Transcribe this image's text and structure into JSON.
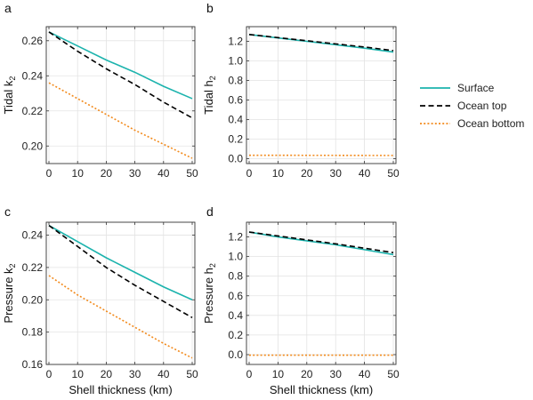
{
  "legend": {
    "entries": [
      {
        "name": "Surface",
        "color": "#1cb3ad",
        "dash": "solid"
      },
      {
        "name": "Ocean top",
        "color": "#000000",
        "dash": "dashed"
      },
      {
        "name": "Ocean bottom",
        "color": "#f28a1c",
        "dash": "dotted"
      }
    ]
  },
  "chart_data": [
    {
      "panel": "a",
      "type": "line",
      "ylabel": "Tidal k",
      "ylabel_sub": "2",
      "xlabel": "",
      "xlim": [
        0,
        50
      ],
      "ylim": [
        0.19,
        0.268
      ],
      "xticks": [
        0,
        10,
        20,
        30,
        40,
        50
      ],
      "yticks": [
        0.2,
        0.22,
        0.24,
        0.26
      ],
      "ytick_labels": [
        "0.20",
        "0.22",
        "0.24",
        "0.26"
      ],
      "grid": true,
      "x": [
        0,
        10,
        20,
        30,
        40,
        50
      ],
      "series": [
        {
          "name": "Surface",
          "values": [
            0.265,
            0.257,
            0.249,
            0.242,
            0.234,
            0.227
          ]
        },
        {
          "name": "Ocean top",
          "values": [
            0.265,
            0.254,
            0.244,
            0.235,
            0.225,
            0.216
          ]
        },
        {
          "name": "Ocean bottom",
          "values": [
            0.236,
            0.227,
            0.218,
            0.209,
            0.201,
            0.193
          ]
        }
      ]
    },
    {
      "panel": "b",
      "type": "line",
      "ylabel": "Tidal h",
      "ylabel_sub": "2",
      "xlabel": "",
      "xlim": [
        0,
        50
      ],
      "ylim": [
        -0.05,
        1.35
      ],
      "xticks": [
        0,
        10,
        20,
        30,
        40,
        50
      ],
      "yticks": [
        0.0,
        0.2,
        0.4,
        0.6,
        0.8,
        1.0,
        1.2
      ],
      "ytick_labels": [
        "0.0",
        "0.2",
        "0.4",
        "0.6",
        "0.8",
        "1.0",
        "1.2"
      ],
      "grid": true,
      "x": [
        0,
        10,
        20,
        30,
        40,
        50
      ],
      "series": [
        {
          "name": "Surface",
          "values": [
            1.27,
            1.235,
            1.2,
            1.165,
            1.13,
            1.09
          ]
        },
        {
          "name": "Ocean top",
          "values": [
            1.27,
            1.238,
            1.206,
            1.174,
            1.142,
            1.105
          ]
        },
        {
          "name": "Ocean bottom",
          "values": [
            0.035,
            0.035,
            0.034,
            0.034,
            0.033,
            0.033
          ]
        }
      ]
    },
    {
      "panel": "c",
      "type": "line",
      "ylabel": "Pressure k",
      "ylabel_sub": "2",
      "xlabel": "Shell thickness (km)",
      "xlim": [
        0,
        50
      ],
      "ylim": [
        0.16,
        0.248
      ],
      "xticks": [
        0,
        10,
        20,
        30,
        40,
        50
      ],
      "yticks": [
        0.16,
        0.18,
        0.2,
        0.22,
        0.24
      ],
      "ytick_labels": [
        "0.16",
        "0.18",
        "0.20",
        "0.22",
        "0.24"
      ],
      "grid": true,
      "x": [
        0,
        10,
        20,
        30,
        40,
        50
      ],
      "series": [
        {
          "name": "Surface",
          "values": [
            0.246,
            0.236,
            0.226,
            0.217,
            0.208,
            0.2
          ]
        },
        {
          "name": "Ocean top",
          "values": [
            0.246,
            0.233,
            0.22,
            0.209,
            0.199,
            0.189
          ]
        },
        {
          "name": "Ocean bottom",
          "values": [
            0.215,
            0.203,
            0.193,
            0.183,
            0.173,
            0.164
          ]
        }
      ]
    },
    {
      "panel": "d",
      "type": "line",
      "ylabel": "Pressure h",
      "ylabel_sub": "2",
      "xlabel": "Shell thickness (km)",
      "xlim": [
        0,
        50
      ],
      "ylim": [
        -0.1,
        1.35
      ],
      "xticks": [
        0,
        10,
        20,
        30,
        40,
        50
      ],
      "yticks": [
        0.0,
        0.2,
        0.4,
        0.6,
        0.8,
        1.0,
        1.2
      ],
      "ytick_labels": [
        "0.0",
        "0.2",
        "0.4",
        "0.6",
        "0.8",
        "1.0",
        "1.2"
      ],
      "grid": true,
      "x": [
        0,
        10,
        20,
        30,
        40,
        50
      ],
      "series": [
        {
          "name": "Surface",
          "values": [
            1.25,
            1.2,
            1.16,
            1.12,
            1.07,
            1.02
          ]
        },
        {
          "name": "Ocean top",
          "values": [
            1.25,
            1.21,
            1.17,
            1.13,
            1.085,
            1.04
          ]
        },
        {
          "name": "Ocean bottom",
          "values": [
            -0.005,
            -0.005,
            -0.005,
            -0.005,
            -0.005,
            -0.005
          ]
        }
      ]
    }
  ]
}
